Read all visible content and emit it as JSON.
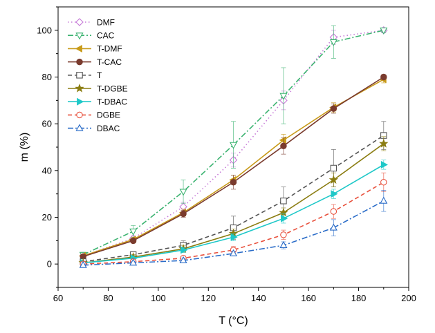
{
  "chart_data": {
    "type": "line",
    "title": "",
    "xlabel": "T (°C)",
    "ylabel": "m (%)",
    "xlim": [
      60,
      200
    ],
    "ylim": [
      -10,
      110
    ],
    "xticks": [
      60,
      80,
      100,
      120,
      140,
      160,
      180,
      200
    ],
    "yticks": [
      0,
      20,
      40,
      60,
      80,
      100
    ],
    "legend_position": "top-left",
    "x": [
      70,
      90,
      110,
      130,
      150,
      170,
      190
    ],
    "series": [
      {
        "name": "DMF",
        "color": "#c77cd8",
        "dash": "dot",
        "marker": "diamond",
        "filled": false,
        "values": [
          3.5,
          11,
          24.5,
          44.5,
          70,
          97,
          100
        ],
        "errors": [
          0.5,
          1,
          2,
          3,
          4,
          3,
          1
        ]
      },
      {
        "name": "CAC",
        "color": "#3cb371",
        "dash": "dashdot",
        "marker": "tri-down",
        "filled": false,
        "values": [
          4,
          14,
          31,
          51,
          72,
          95,
          100
        ],
        "errors": [
          1,
          2.5,
          5,
          10,
          12,
          7,
          1
        ]
      },
      {
        "name": "T-DMF",
        "color": "#c89a18",
        "dash": "solid",
        "marker": "tri-left",
        "filled": true,
        "values": [
          3.5,
          10.5,
          22,
          36,
          53,
          67,
          79
        ],
        "errors": [
          0.5,
          1,
          1.5,
          2,
          2.5,
          2,
          1.5
        ]
      },
      {
        "name": "T-CAC",
        "color": "#7a3b2e",
        "dash": "solid",
        "marker": "circle",
        "filled": true,
        "values": [
          3.2,
          10,
          21.5,
          35,
          50.5,
          66.5,
          80
        ],
        "errors": [
          0.5,
          1,
          1.5,
          3,
          3.5,
          2,
          1
        ]
      },
      {
        "name": "T",
        "color": "#555555",
        "dash": "dash",
        "marker": "square",
        "filled": false,
        "values": [
          1,
          4,
          8,
          15.5,
          27,
          41,
          55
        ],
        "errors": [
          0.5,
          1,
          2,
          5,
          6,
          8,
          6
        ]
      },
      {
        "name": "T-DGBE",
        "color": "#8b7d12",
        "dash": "solid",
        "marker": "star",
        "filled": true,
        "values": [
          0.5,
          3,
          6.5,
          13,
          22,
          36,
          51.5
        ],
        "errors": [
          0.5,
          1,
          1.5,
          2,
          2,
          3,
          3
        ]
      },
      {
        "name": "T-DBAC",
        "color": "#1ec8c8",
        "dash": "solid",
        "marker": "tri-right",
        "filled": true,
        "values": [
          0.5,
          2.5,
          6,
          11.5,
          19.5,
          30,
          42.5
        ],
        "errors": [
          0.5,
          1,
          1,
          1.5,
          2,
          2,
          2
        ]
      },
      {
        "name": "DGBE",
        "color": "#e8503c",
        "dash": "dash",
        "marker": "circle",
        "filled": false,
        "values": [
          0,
          1,
          2.5,
          6,
          12.5,
          22.5,
          35
        ],
        "errors": [
          0.5,
          0.5,
          1,
          1.5,
          2,
          3,
          4
        ]
      },
      {
        "name": "DBAC",
        "color": "#2a6cc8",
        "dash": "dashdot",
        "marker": "tri-up",
        "filled": false,
        "values": [
          -0.5,
          0.5,
          1.5,
          4.5,
          8,
          15.5,
          27
        ],
        "errors": [
          0.5,
          0.5,
          1,
          1,
          1.5,
          3.5,
          4.5
        ]
      }
    ]
  }
}
